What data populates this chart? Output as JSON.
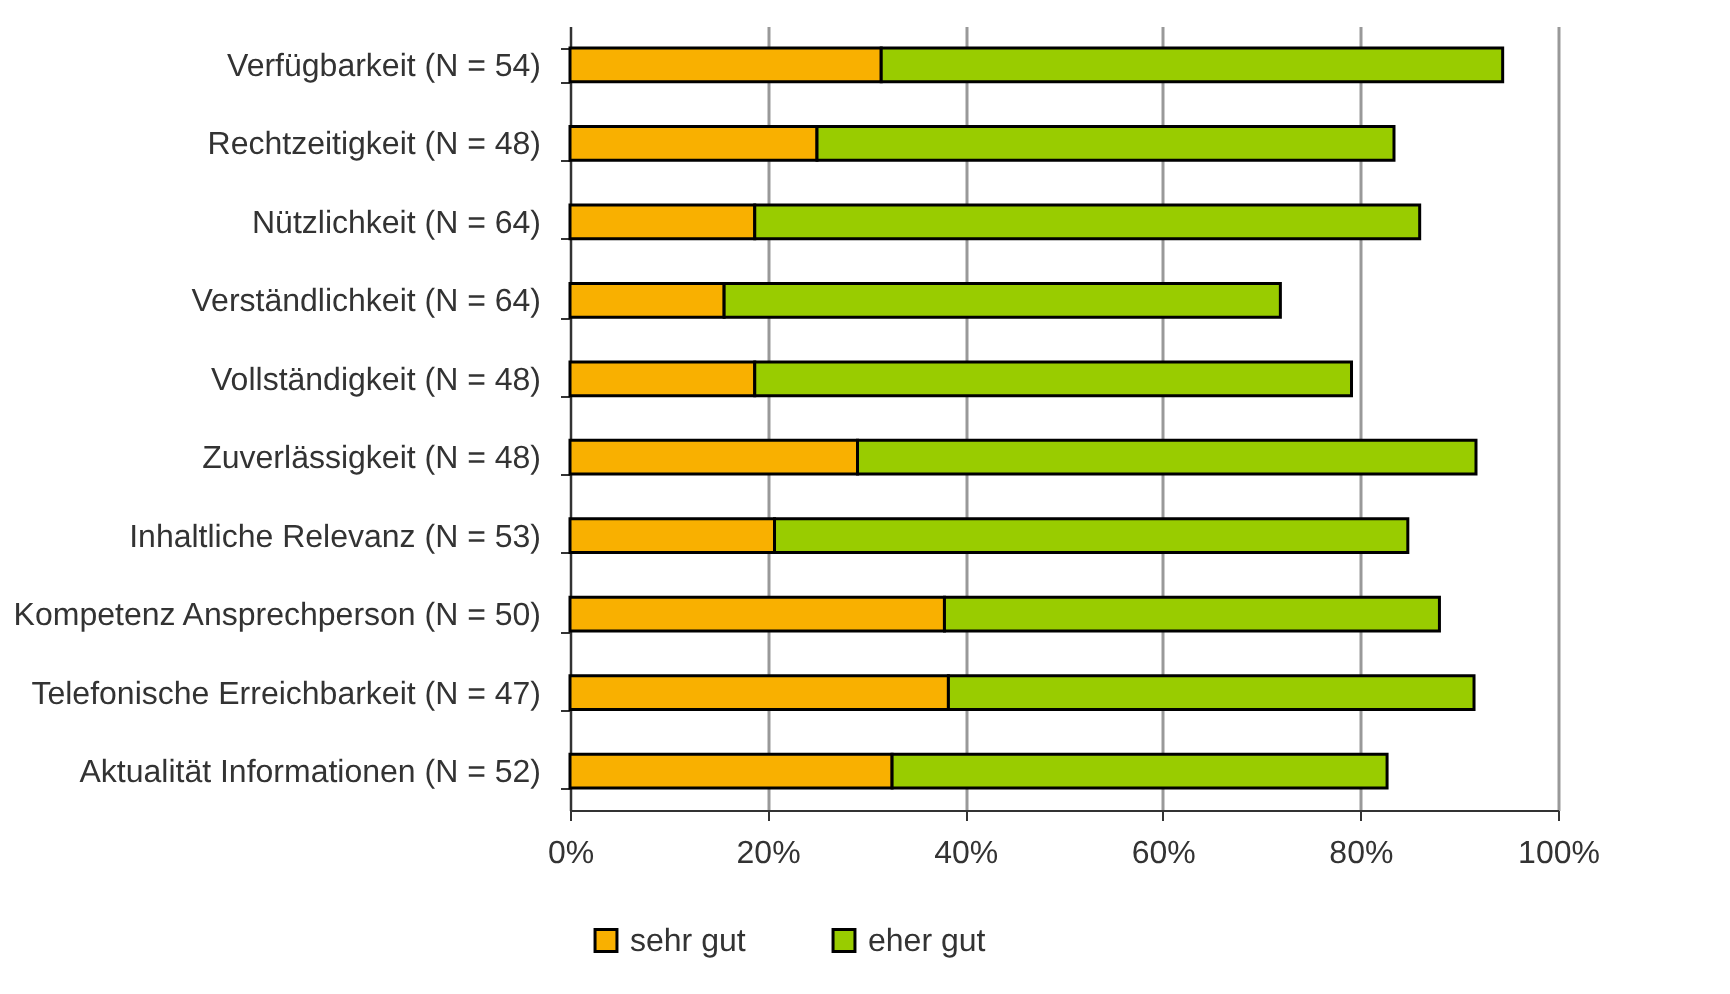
{
  "chart_data": {
    "type": "bar",
    "orientation": "horizontal",
    "stacked": true,
    "categories": [
      "Verfügbarkeit (N = 54)",
      "Rechtzeitigkeit (N = 48)",
      "Nützlichkeit (N = 64)",
      "Verständlichkeit (N = 64)",
      "Vollständigkeit (N = 48)",
      "Zuverlässigkeit (N = 48)",
      "Inhaltliche Relevanz (N = 53)",
      "Kompetenz Ansprechperson (N = 50)",
      "Telefonische Erreichbarkeit (N = 47)",
      "Aktualität Informationen (N = 52)"
    ],
    "series": [
      {
        "name": "sehr gut",
        "color": "#f9b000",
        "values": [
          31.5,
          25.0,
          18.7,
          15.6,
          18.7,
          29.1,
          20.7,
          37.9,
          38.3,
          32.6
        ]
      },
      {
        "name": "eher gut",
        "color": "#99cc00",
        "values": [
          62.9,
          58.4,
          67.3,
          56.3,
          60.4,
          62.6,
          64.1,
          50.1,
          53.2,
          50.1
        ]
      }
    ],
    "xlim": [
      0,
      100
    ],
    "xticks": [
      {
        "value": 0,
        "label": "0%"
      },
      {
        "value": 20,
        "label": "20%"
      },
      {
        "value": 40,
        "label": "40%"
      },
      {
        "value": 60,
        "label": "60%"
      },
      {
        "value": 80,
        "label": "80%"
      },
      {
        "value": 100,
        "label": "100%"
      }
    ],
    "grid": "x",
    "legend": "bottom"
  }
}
